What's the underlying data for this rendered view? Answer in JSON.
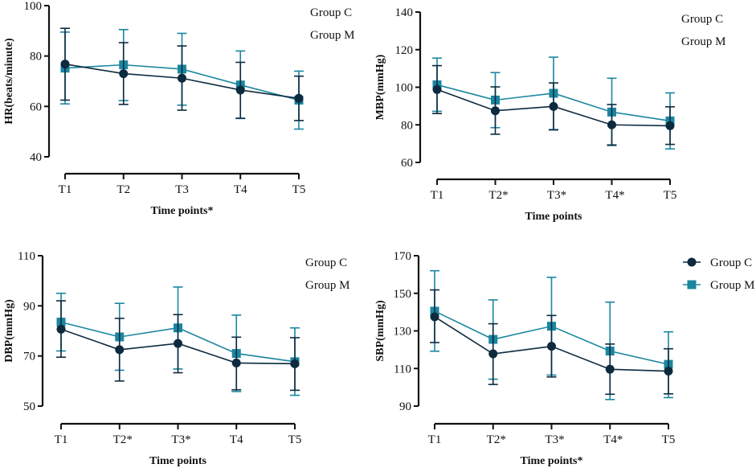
{
  "colors": {
    "Group C": "#0d2a3e",
    "Group M": "#1a86a0"
  },
  "chart_data": [
    {
      "type": "line",
      "xlabel": "Time points*",
      "ylabel": "HR(beats/minute)",
      "categories": [
        "T1",
        "T2",
        "T3",
        "T4",
        "T5"
      ],
      "ylim": [
        40,
        100
      ],
      "yticks": [
        40,
        60,
        80,
        100
      ],
      "legend": {
        "entries": [
          "Group C",
          "Group M"
        ],
        "show_markers": false,
        "placement": "top-right"
      },
      "series": [
        {
          "name": "Group C",
          "marker": "circle",
          "values": [
            76.8,
            73.0,
            71.2,
            66.5,
            63.2
          ],
          "upper": [
            91.0,
            85.3,
            84.0,
            77.5,
            72.0
          ],
          "lower": [
            62.5,
            60.8,
            58.5,
            55.3,
            54.4
          ]
        },
        {
          "name": "Group M",
          "marker": "square",
          "values": [
            75.2,
            76.5,
            74.8,
            68.5,
            62.5
          ],
          "upper": [
            89.5,
            90.5,
            89.0,
            82.0,
            74.0
          ],
          "lower": [
            61.0,
            62.3,
            60.5,
            55.2,
            51.0
          ]
        }
      ]
    },
    {
      "type": "line",
      "xlabel": "Time points",
      "ylabel": "MBP(mmHg)",
      "categories": [
        "T1",
        "T2*",
        "T3*",
        "T4*",
        "T5"
      ],
      "ylim": [
        60,
        140
      ],
      "yticks": [
        60,
        80,
        100,
        120,
        140
      ],
      "legend": {
        "entries": [
          "Group C",
          "Group M"
        ],
        "show_markers": false,
        "placement": "top-right"
      },
      "series": [
        {
          "name": "Group C",
          "marker": "circle",
          "values": [
            98.8,
            87.5,
            89.8,
            80.0,
            79.5
          ],
          "upper": [
            111.5,
            100.2,
            102.3,
            90.8,
            89.6
          ],
          "lower": [
            86.0,
            75.0,
            77.3,
            69.3,
            69.6
          ]
        },
        {
          "name": "Group M",
          "marker": "square",
          "values": [
            101.3,
            93.2,
            96.8,
            86.8,
            82.1
          ],
          "upper": [
            115.5,
            107.8,
            116.0,
            104.8,
            97.0
          ],
          "lower": [
            87.2,
            78.5,
            77.5,
            69.0,
            67.2
          ]
        }
      ]
    },
    {
      "type": "line",
      "xlabel": "Time points",
      "ylabel": "DBP(mmHg)",
      "categories": [
        "T1",
        "T2*",
        "T3*",
        "T4",
        "T5"
      ],
      "ylim": [
        50,
        110
      ],
      "yticks": [
        50,
        70,
        90,
        110
      ],
      "legend": {
        "entries": [
          "Group C",
          "Group M"
        ],
        "show_markers": false,
        "placement": "top-right"
      },
      "series": [
        {
          "name": "Group C",
          "marker": "circle",
          "values": [
            80.7,
            72.5,
            75.0,
            67.2,
            66.9
          ],
          "upper": [
            92.0,
            85.0,
            86.5,
            77.5,
            77.3
          ],
          "lower": [
            69.5,
            60.0,
            63.3,
            56.5,
            56.3
          ]
        },
        {
          "name": "Group M",
          "marker": "square",
          "values": [
            83.5,
            77.6,
            81.2,
            71.0,
            67.7
          ],
          "upper": [
            95.0,
            91.0,
            97.5,
            86.3,
            81.2
          ],
          "lower": [
            72.0,
            64.3,
            64.8,
            55.8,
            54.3
          ]
        }
      ]
    },
    {
      "type": "line",
      "xlabel": "Time points*",
      "ylabel": "SBP(mmHg)",
      "categories": [
        "T1",
        "T2*",
        "T3*",
        "T4*",
        "T5"
      ],
      "ylim": [
        90,
        170
      ],
      "yticks": [
        90,
        110,
        130,
        150,
        170
      ],
      "legend": {
        "entries": [
          "Group C",
          "Group M"
        ],
        "show_markers": true,
        "placement": "top-right"
      },
      "series": [
        {
          "name": "Group C",
          "marker": "circle",
          "values": [
            137.5,
            117.8,
            121.8,
            109.6,
            108.6
          ],
          "upper": [
            151.8,
            133.8,
            138.2,
            123.0,
            120.5
          ],
          "lower": [
            123.8,
            101.5,
            105.5,
            96.3,
            96.5
          ]
        },
        {
          "name": "Group M",
          "marker": "square",
          "values": [
            140.5,
            125.5,
            132.5,
            119.3,
            112.2
          ],
          "upper": [
            162.0,
            146.5,
            158.5,
            145.3,
            129.5
          ],
          "lower": [
            119.2,
            104.3,
            106.5,
            93.5,
            94.5
          ]
        }
      ]
    }
  ]
}
